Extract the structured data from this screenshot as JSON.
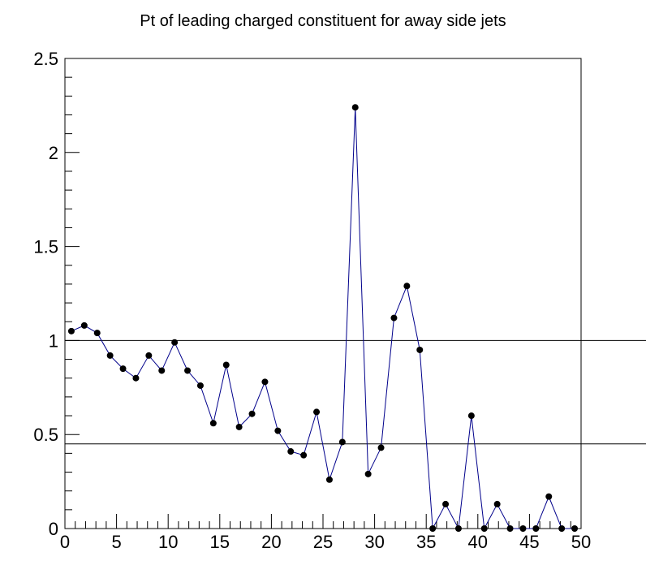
{
  "chart_data": {
    "type": "line",
    "title": "Pt of leading charged constituent for away side jets",
    "xlabel": "",
    "ylabel": "",
    "xlim": [
      0,
      50
    ],
    "ylim": [
      0,
      2.5
    ],
    "x_ticks": [
      "0",
      "5",
      "10",
      "15",
      "20",
      "25",
      "30",
      "35",
      "40",
      "45",
      "50"
    ],
    "y_ticks": [
      "0",
      "0.5",
      "1",
      "1.5",
      "2",
      "2.5"
    ],
    "grid": false,
    "legend": "none",
    "series_color": "#00008b",
    "marker_color": "#000000",
    "reference_lines": [
      1.0,
      0.45
    ],
    "x": [
      0.625,
      1.875,
      3.125,
      4.375,
      5.625,
      6.875,
      8.125,
      9.375,
      10.625,
      11.875,
      13.125,
      14.375,
      15.625,
      16.875,
      18.125,
      19.375,
      20.625,
      21.875,
      23.125,
      24.375,
      25.625,
      26.875,
      28.125,
      29.375,
      30.625,
      31.875,
      33.125,
      34.375,
      35.625,
      36.875,
      38.125,
      39.375,
      40.625,
      41.875,
      43.125,
      44.375,
      45.625,
      46.875,
      48.125,
      49.375
    ],
    "values": [
      1.05,
      1.08,
      1.04,
      0.92,
      0.85,
      0.8,
      0.92,
      0.84,
      0.99,
      0.84,
      0.76,
      0.56,
      0.87,
      0.54,
      0.61,
      0.78,
      0.52,
      0.41,
      0.39,
      0.62,
      0.26,
      0.46,
      2.24,
      0.29,
      0.43,
      1.12,
      1.29,
      0.95,
      0.0,
      0.13,
      0.0,
      0.6,
      0.0,
      0.13,
      0.0,
      0.0,
      0.0,
      0.17,
      0.0,
      0.0
    ]
  }
}
